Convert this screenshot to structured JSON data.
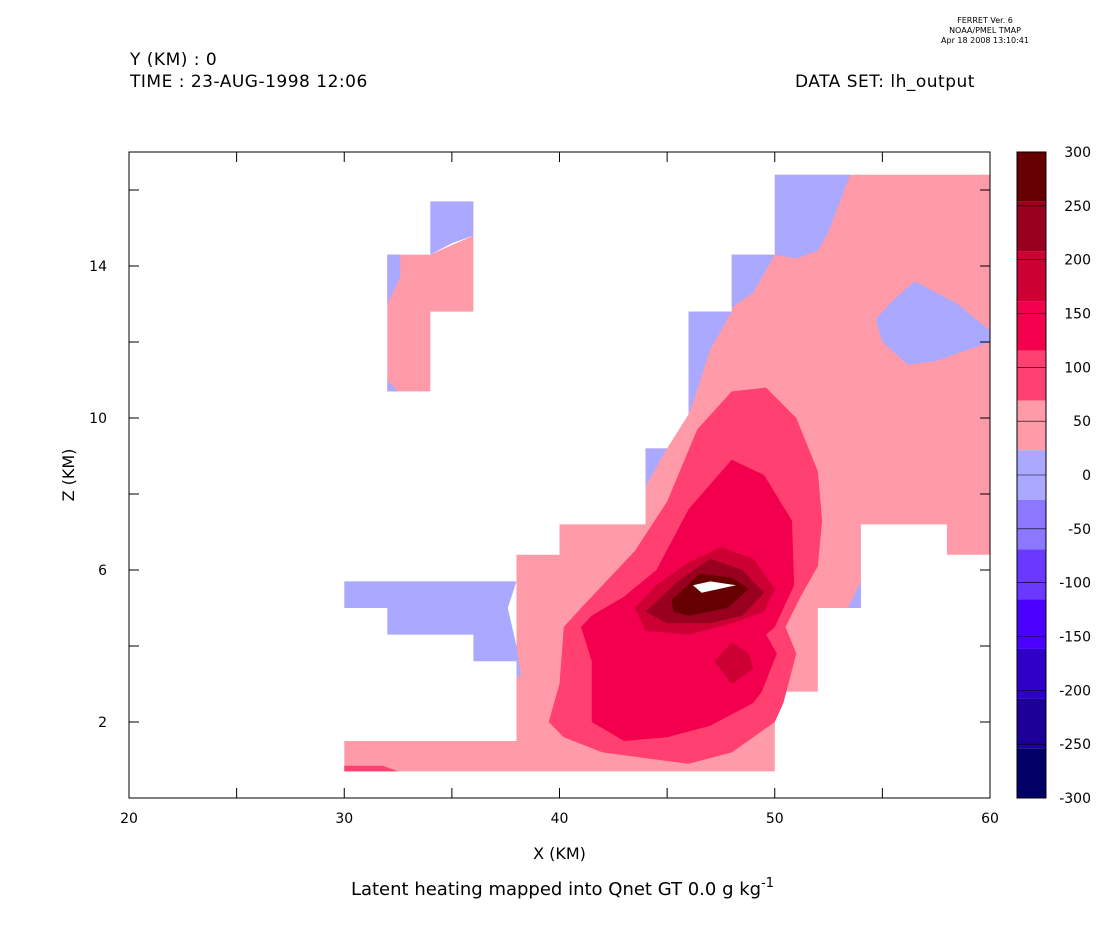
{
  "header": {
    "y_line": "Y (KM) : 0",
    "time_line": "TIME : 23-AUG-1998 12:06",
    "dataset_line": "DATA SET: lh_output"
  },
  "stamp": {
    "line1": "FERRET Ver. 6",
    "line2": "NOAA/PMEL TMAP",
    "line3": "Apr 18 2008 13:10:41"
  },
  "chart_data": {
    "type": "heatmap",
    "subtype": "filled-contour",
    "title": "Latent heating mapped into Qnet GT 0.0 g kg",
    "title_superscript": "-1",
    "xlabel": "X (KM)",
    "ylabel": "Z (KM)",
    "xlim": [
      20,
      60
    ],
    "ylim": [
      0,
      17
    ],
    "x_ticks": [
      20,
      30,
      40,
      50,
      60
    ],
    "x_minor_ticks": [
      25,
      35,
      45,
      55
    ],
    "y_ticks": [
      2,
      6,
      10,
      14
    ],
    "y_minor_ticks": [
      4,
      8,
      12,
      16
    ],
    "colorbar": {
      "levels": [
        300,
        250,
        200,
        150,
        100,
        50,
        0,
        -50,
        -100,
        -150,
        -200,
        -250,
        -300
      ],
      "colors": [
        "#660000",
        "#99001f",
        "#cc0033",
        "#f2004d",
        "#ff4070",
        "#ff9aa8",
        "#aaa8ff",
        "#8c78ff",
        "#6a38ff",
        "#4a00ff",
        "#2e00c8",
        "#1c0098",
        "#000066"
      ]
    },
    "regions": [
      {
        "level": "0 to 50",
        "color": "#ff9aa8",
        "points": [
          [
            30,
            1.5
          ],
          [
            38,
            1.5
          ],
          [
            38,
            6.4
          ],
          [
            40,
            6.4
          ],
          [
            40,
            7.2
          ],
          [
            44,
            7.2
          ],
          [
            44,
            9.2
          ],
          [
            45,
            9.2
          ],
          [
            46,
            10.1
          ],
          [
            46,
            12.8
          ],
          [
            48,
            12.8
          ],
          [
            48,
            14.3
          ],
          [
            50,
            14.3
          ],
          [
            50,
            16.4
          ],
          [
            60,
            16.4
          ],
          [
            60,
            6.4
          ],
          [
            58,
            6.4
          ],
          [
            58,
            7.2
          ],
          [
            54,
            7.2
          ],
          [
            54,
            5.0
          ],
          [
            52,
            5.0
          ],
          [
            52,
            2.8
          ],
          [
            50,
            2.8
          ],
          [
            50,
            0.7
          ],
          [
            30,
            0.7
          ]
        ]
      },
      {
        "level": "0 to 50",
        "color": "#ff9aa8",
        "points": [
          [
            32,
            14.3
          ],
          [
            34,
            14.3
          ],
          [
            36,
            14.8
          ],
          [
            36,
            12.8
          ],
          [
            34,
            12.8
          ],
          [
            34,
            10.7
          ],
          [
            32,
            10.7
          ]
        ]
      },
      {
        "level": "-50 to 0",
        "color": "#aaa8ff",
        "points": [
          [
            50,
            16.4
          ],
          [
            53.5,
            16.4
          ],
          [
            52.5,
            14.9
          ],
          [
            52,
            14.4
          ],
          [
            51,
            14.2
          ],
          [
            50,
            14.3
          ]
        ]
      },
      {
        "level": "-50 to 0",
        "color": "#aaa8ff",
        "points": [
          [
            48,
            14.3
          ],
          [
            50,
            14.3
          ],
          [
            49,
            13.3
          ],
          [
            48,
            12.9
          ]
        ]
      },
      {
        "level": "-50 to 0",
        "color": "#aaa8ff",
        "points": [
          [
            46,
            12.8
          ],
          [
            48,
            12.8
          ],
          [
            47,
            11.8
          ],
          [
            46.2,
            10.4
          ],
          [
            46,
            10.1
          ]
        ]
      },
      {
        "level": "-50 to 0",
        "color": "#aaa8ff",
        "points": [
          [
            44,
            9.2
          ],
          [
            45,
            9.2
          ],
          [
            44,
            8.2
          ]
        ]
      },
      {
        "level": "-50 to 0",
        "color": "#aaa8ff",
        "points": [
          [
            55.5,
            13.1
          ],
          [
            56.5,
            13.6
          ],
          [
            58.5,
            13.0
          ],
          [
            60,
            12.3
          ],
          [
            60,
            12.0
          ],
          [
            57.5,
            11.5
          ],
          [
            56.2,
            11.4
          ],
          [
            55,
            12.0
          ],
          [
            54.7,
            12.6
          ]
        ]
      },
      {
        "level": "-50 to 0",
        "color": "#aaa8ff",
        "points": [
          [
            34,
            15.7
          ],
          [
            36,
            15.7
          ],
          [
            36,
            14.8
          ],
          [
            35,
            14.6
          ],
          [
            34,
            14.3
          ]
        ]
      },
      {
        "level": "-50 to 0",
        "color": "#aaa8ff",
        "points": [
          [
            32,
            14.3
          ],
          [
            32.6,
            14.3
          ],
          [
            32.6,
            13.7
          ],
          [
            32,
            13.0
          ]
        ]
      },
      {
        "level": "-50 to 0",
        "color": "#aaa8ff",
        "points": [
          [
            32,
            11.0
          ],
          [
            32,
            10.7
          ],
          [
            32.5,
            10.7
          ]
        ]
      },
      {
        "level": "-50 to 0",
        "color": "#aaa8ff",
        "points": [
          [
            30,
            5.7
          ],
          [
            38,
            5.7
          ],
          [
            37.6,
            5.0
          ],
          [
            38.0,
            4.0
          ],
          [
            38.2,
            3.2
          ],
          [
            38,
            3.2
          ],
          [
            38,
            3.6
          ],
          [
            36,
            3.6
          ],
          [
            36,
            4.3
          ],
          [
            32,
            4.3
          ],
          [
            32,
            5.0
          ],
          [
            30,
            5.0
          ]
        ]
      },
      {
        "level": "-50 to 0",
        "color": "#aaa8ff",
        "points": [
          [
            54,
            5.0
          ],
          [
            53.4,
            5.0
          ],
          [
            54,
            5.7
          ]
        ]
      },
      {
        "level": "50 to 100",
        "color": "#ff4070",
        "points": [
          [
            39.5,
            2.0
          ],
          [
            40,
            3.0
          ],
          [
            40.2,
            4.5
          ],
          [
            41,
            5.0
          ],
          [
            42,
            5.6
          ],
          [
            43.5,
            6.5
          ],
          [
            45,
            7.8
          ],
          [
            46.4,
            9.7
          ],
          [
            48,
            10.7
          ],
          [
            49.6,
            10.8
          ],
          [
            51,
            10.0
          ],
          [
            52,
            8.6
          ],
          [
            52.2,
            7.3
          ],
          [
            52,
            6.1
          ],
          [
            51.2,
            5.3
          ],
          [
            50.5,
            4.5
          ],
          [
            51.0,
            3.8
          ],
          [
            50.4,
            2.5
          ],
          [
            50,
            2.0
          ],
          [
            48,
            1.2
          ],
          [
            46,
            0.9
          ],
          [
            42,
            1.2
          ],
          [
            40.2,
            1.6
          ]
        ]
      },
      {
        "level": "100 to 150",
        "color": "#f2004d",
        "points": [
          [
            41.5,
            2.0
          ],
          [
            41.5,
            3.6
          ],
          [
            41.0,
            4.5
          ],
          [
            41.5,
            4.8
          ],
          [
            43,
            5.3
          ],
          [
            44.5,
            6.0
          ],
          [
            46,
            7.6
          ],
          [
            48,
            8.9
          ],
          [
            49.5,
            8.5
          ],
          [
            50.8,
            7.3
          ],
          [
            50.9,
            5.6
          ],
          [
            50,
            4.5
          ],
          [
            49.6,
            4.3
          ],
          [
            50.1,
            3.8
          ],
          [
            49.4,
            2.8
          ],
          [
            49,
            2.5
          ],
          [
            47,
            1.9
          ],
          [
            45,
            1.6
          ],
          [
            43,
            1.5
          ]
        ]
      },
      {
        "level": "150 to 200",
        "color": "#cc0033",
        "points": [
          [
            43.5,
            5.0
          ],
          [
            44.5,
            5.6
          ],
          [
            46,
            6.2
          ],
          [
            47.5,
            6.6
          ],
          [
            49,
            6.3
          ],
          [
            50,
            5.5
          ],
          [
            49.5,
            4.9
          ],
          [
            48,
            4.6
          ],
          [
            46,
            4.3
          ],
          [
            44,
            4.4
          ]
        ]
      },
      {
        "level": "150 to 200",
        "color": "#cc0033",
        "points": [
          [
            47.2,
            3.6
          ],
          [
            48,
            4.1
          ],
          [
            48.8,
            3.8
          ],
          [
            49,
            3.4
          ],
          [
            48,
            3.0
          ]
        ]
      },
      {
        "level": "200 to 250",
        "color": "#99001f",
        "points": [
          [
            44,
            4.9
          ],
          [
            45.5,
            5.7
          ],
          [
            47,
            6.3
          ],
          [
            48.5,
            6.0
          ],
          [
            49.5,
            5.4
          ],
          [
            48.5,
            4.8
          ],
          [
            47,
            4.6
          ],
          [
            45,
            4.6
          ]
        ]
      },
      {
        "level": "250 to 300",
        "color": "#660000",
        "points": [
          [
            45.2,
            5.2
          ],
          [
            46.5,
            5.9
          ],
          [
            48,
            5.8
          ],
          [
            48.8,
            5.5
          ],
          [
            47.8,
            5.0
          ],
          [
            46,
            4.8
          ],
          [
            45.3,
            4.9
          ]
        ]
      },
      {
        "level": "above 300",
        "color": "#ffffff",
        "points": [
          [
            46.2,
            5.6
          ],
          [
            47,
            5.7
          ],
          [
            48.2,
            5.6
          ],
          [
            46.6,
            5.4
          ]
        ]
      },
      {
        "level": "50 to 100",
        "color": "#ff4070",
        "points": [
          [
            30,
            0.7
          ],
          [
            32.5,
            0.7
          ],
          [
            31.8,
            0.85
          ],
          [
            30,
            0.85
          ]
        ]
      }
    ]
  }
}
